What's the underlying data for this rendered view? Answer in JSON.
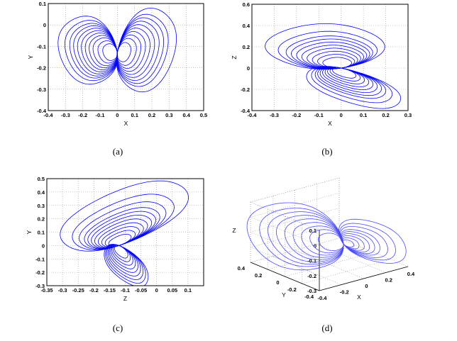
{
  "captions": [
    "(a)",
    "(b)",
    "(c)",
    "(d)"
  ],
  "colors": {
    "curve": "#0000ff",
    "curve3d": "#4a4aff",
    "grid": "#999999"
  },
  "chart_data": [
    {
      "id": "a",
      "type": "line",
      "xlabel": "X",
      "ylabel": "Y",
      "xlim": [
        -0.4,
        0.5
      ],
      "ylim": [
        -0.4,
        0.1
      ],
      "grid": true,
      "xticks": [
        -0.4,
        -0.3,
        -0.2,
        -0.1,
        0,
        0.1,
        0.2,
        0.3,
        0.4,
        0.5
      ],
      "xtick_labels": [
        "-0.4",
        "-0.3",
        "-0.2",
        "-0.1",
        "0",
        "0.1",
        "0.2",
        "0.3",
        "0.4",
        "0.5"
      ],
      "yticks": [
        0.1,
        0,
        -0.1,
        -0.2,
        -0.3,
        -0.4
      ],
      "ytick_labels": [
        "0.1",
        "0",
        "-0.1",
        "-0.2",
        "-0.3",
        "-0.4"
      ],
      "lobes": [
        {
          "junction": [
            0,
            -0.13
          ],
          "v": [
            0.14,
            -0.01
          ],
          "w": [
            -0.02,
            0.13
          ],
          "radii": [
            0.3,
            0.4,
            0.5,
            0.58,
            0.66,
            0.74,
            0.82,
            0.9,
            0.98,
            1.08,
            1.22
          ]
        },
        {
          "junction": [
            0,
            -0.13
          ],
          "v": [
            -0.13,
            -0.01
          ],
          "w": [
            0.03,
            0.15
          ],
          "radii": [
            0.3,
            0.42,
            0.52,
            0.62,
            0.72,
            0.82,
            0.92,
            1.02,
            1.12,
            1.3
          ]
        }
      ]
    },
    {
      "id": "b",
      "type": "line",
      "xlabel": "X",
      "ylabel": "Z",
      "xlim": [
        -0.4,
        0.3
      ],
      "ylim": [
        -0.4,
        0.6
      ],
      "grid": true,
      "xticks": [
        -0.4,
        -0.3,
        -0.2,
        -0.1,
        0,
        0.1,
        0.2,
        0.3
      ],
      "xtick_labels": [
        "-0.4",
        "-0.3",
        "-0.2",
        "-0.1",
        "0",
        "0.1",
        "0.2",
        "0.3"
      ],
      "yticks": [
        0.6,
        0.4,
        0.2,
        0,
        -0.2,
        -0.4
      ],
      "ytick_labels": [
        "0.6",
        "0.4",
        "0.2",
        "0",
        "-0.2",
        "-0.4"
      ],
      "lobes": [
        {
          "junction": [
            0,
            0
          ],
          "v": [
            0.05,
            -0.14
          ],
          "w": [
            0.17,
            0.05
          ],
          "radii": [
            0.35,
            0.45,
            0.55,
            0.65,
            0.75,
            0.85,
            0.95,
            1.05,
            1.2,
            1.45
          ]
        },
        {
          "junction": [
            0,
            0
          ],
          "v": [
            -0.04,
            0.13
          ],
          "w": [
            0.15,
            -0.06
          ],
          "radii": [
            0.35,
            0.45,
            0.55,
            0.65,
            0.75,
            0.85,
            0.95,
            1.05,
            1.2,
            1.4
          ]
        }
      ]
    },
    {
      "id": "c",
      "type": "line",
      "xlabel": "Z",
      "ylabel": "Y",
      "xlim": [
        -0.35,
        0.15
      ],
      "ylim": [
        -0.3,
        0.5
      ],
      "grid": true,
      "xticks": [
        -0.35,
        -0.3,
        -0.25,
        -0.2,
        -0.15,
        -0.1,
        -0.05,
        0,
        0.05,
        0.1
      ],
      "xtick_labels": [
        "-0.35",
        "-0.3",
        "-0.25",
        "-0.2",
        "-0.15",
        "-0.1",
        "-0.05",
        "0",
        "0.05",
        "0.1"
      ],
      "yticks": [
        0.5,
        0.4,
        0.3,
        0.2,
        0.1,
        0,
        -0.1,
        -0.2,
        -0.3
      ],
      "ytick_labels": [
        "0.5",
        "0.4",
        "0.3",
        "0.2",
        "0.1",
        "0",
        "-0.1",
        "-0.2",
        "-0.3"
      ],
      "lobes": [
        {
          "junction": [
            -0.12,
            0.0
          ],
          "v": [
            -0.01,
            -0.13
          ],
          "w": [
            0.12,
            0.09
          ],
          "radii": [
            0.3,
            0.4,
            0.5,
            0.6,
            0.7,
            0.8,
            0.9,
            1.0,
            1.15,
            1.35,
            1.7
          ]
        },
        {
          "junction": [
            -0.12,
            0.0
          ],
          "v": [
            -0.02,
            0.13
          ],
          "w": [
            0.06,
            -0.05
          ],
          "radii": [
            0.35,
            0.45,
            0.55,
            0.65,
            0.75,
            0.85,
            0.95,
            1.05,
            1.15
          ]
        }
      ]
    },
    {
      "id": "d",
      "type": "line3d",
      "xlabel": "X",
      "ylabel": "Y",
      "zlabel": "Z",
      "xlim": [
        -0.4,
        0.4
      ],
      "ylim": [
        -0.4,
        0.4
      ],
      "zlim": [
        -0.3,
        0.1
      ],
      "grid": true,
      "xticks": [
        -0.4,
        -0.2,
        0,
        0.2,
        0.4
      ],
      "xtick_labels": [
        "-0.4",
        "-0.2",
        "0",
        "0.2",
        "0.4"
      ],
      "yticks": [
        0.4,
        0.2,
        0,
        -0.2,
        -0.4
      ],
      "ytick_labels": [
        "0.4",
        "0.2",
        "0",
        "-0.2",
        "-0.4"
      ],
      "zticks": [
        0.1,
        0,
        -0.1,
        -0.2,
        -0.3
      ],
      "ztick_labels": [
        "0.1",
        "0",
        "-0.1",
        "-0.2",
        "-0.3"
      ],
      "lobes": [
        {
          "junction": [
            0.05,
            -0.1,
            -0.15
          ],
          "v": [
            0.3,
            -0.1,
            -0.08
          ],
          "w": [
            0.05,
            0.1,
            0.16
          ],
          "radii": [
            0.3,
            0.4,
            0.5,
            0.6,
            0.7,
            0.8,
            0.9,
            1.0,
            1.15
          ]
        },
        {
          "junction": [
            0.05,
            -0.1,
            -0.15
          ],
          "v": [
            -0.14,
            0.1,
            -0.01
          ],
          "w": [
            0.05,
            0.22,
            0.06
          ],
          "radii": [
            0.2,
            0.3,
            0.4,
            0.5,
            0.6,
            0.7,
            0.85,
            1.0,
            1.2
          ]
        }
      ]
    }
  ]
}
